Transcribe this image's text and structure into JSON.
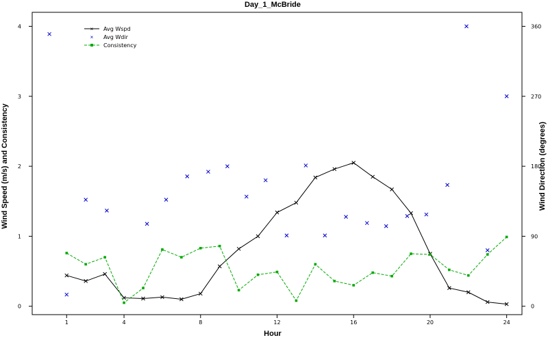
{
  "chart_data": {
    "type": "line",
    "title": "Day_1_McBride",
    "xlabel": "Hour",
    "ylabel_left": "Wind Speed (m/s) and Consistency",
    "ylabel_right": "Wind Direction (degrees)",
    "xlim": [
      -0.8,
      24.8
    ],
    "ylim_left": [
      -0.12,
      4.2
    ],
    "ylim_right": [
      -10.8,
      378
    ],
    "x_ticks": [
      1,
      4,
      8,
      12,
      16,
      20,
      24
    ],
    "y_ticks_left": [
      0,
      1,
      2,
      3,
      4
    ],
    "y_ticks_right": [
      0,
      90,
      180,
      270,
      360
    ],
    "legend_position": "top-left",
    "grid": false,
    "series": [
      {
        "name": "Avg Wspd",
        "axis": "left",
        "style": "line-x",
        "color": "#000000",
        "x": [
          1,
          2,
          3,
          4,
          5,
          6,
          7,
          8,
          9,
          10,
          11,
          12,
          13,
          14,
          15,
          16,
          17,
          18,
          19,
          20,
          21,
          22,
          23,
          24
        ],
        "values": [
          0.44,
          0.36,
          0.46,
          0.12,
          0.11,
          0.13,
          0.1,
          0.18,
          0.57,
          0.82,
          1.0,
          1.34,
          1.48,
          1.84,
          1.96,
          2.05,
          1.85,
          1.67,
          1.33,
          0.75,
          0.26,
          0.2,
          0.06,
          0.03
        ]
      },
      {
        "name": "Avg Wdir",
        "axis": "right",
        "style": "points-x",
        "color": "#0000cc",
        "x": [
          0.1,
          1.0,
          2.0,
          3.1,
          5.2,
          6.2,
          7.3,
          8.4,
          9.4,
          10.4,
          11.4,
          12.5,
          13.5,
          14.5,
          15.6,
          16.7,
          17.7,
          18.8,
          19.8,
          20.9,
          21.9,
          23.0,
          24.0
        ],
        "values": [
          350,
          15,
          137,
          123,
          106,
          137,
          167,
          173,
          180,
          141,
          162,
          91,
          181,
          91,
          115,
          107,
          103,
          116,
          118,
          156,
          360,
          72,
          270
        ]
      },
      {
        "name": "Consistency",
        "axis": "left",
        "style": "dashed-dot",
        "color": "#00aa00",
        "x": [
          1,
          2,
          3,
          4,
          5,
          6,
          7,
          8,
          9,
          10,
          11,
          12,
          13,
          14,
          15,
          16,
          17,
          18,
          19,
          20,
          21,
          22,
          23,
          24
        ],
        "values": [
          0.76,
          0.6,
          0.7,
          0.05,
          0.26,
          0.81,
          0.7,
          0.83,
          0.86,
          0.23,
          0.45,
          0.49,
          0.08,
          0.6,
          0.36,
          0.3,
          0.48,
          0.43,
          0.75,
          0.74,
          0.52,
          0.44,
          0.74,
          0.99
        ]
      }
    ]
  }
}
